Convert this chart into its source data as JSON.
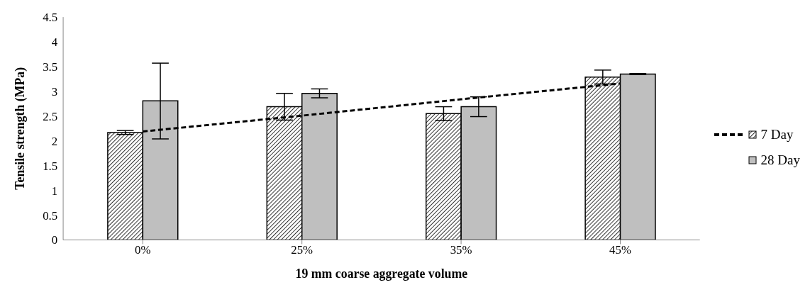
{
  "chart_data": {
    "type": "bar",
    "xlabel": "19 mm coarse aggregate volume",
    "ylabel": "Tensile strength (MPa)",
    "categories": [
      "0%",
      "25%",
      "35%",
      "45%"
    ],
    "series": [
      {
        "name": "7 Day",
        "color": "#000000",
        "values": [
          2.17,
          2.69,
          2.55,
          3.29
        ],
        "errors": [
          0.04,
          0.27,
          0.14,
          0.14
        ]
      },
      {
        "name": "28 Day",
        "color": "#bfbfbf",
        "values": [
          2.81,
          2.96,
          2.69,
          3.35
        ],
        "errors": [
          [
            2.04,
            3.57
          ],
          0.09,
          0.2,
          0.01
        ]
      },
      {
        "type": "line",
        "color": "#000000",
        "line_style": "dashed",
        "values": [
          2.19,
          2.51,
          2.84,
          3.16
        ]
      }
    ],
    "ylim": [
      0,
      4.5
    ],
    "yticks": [
      0,
      0.5,
      1,
      1.5,
      2,
      2.5,
      3,
      3.5,
      4,
      4.5
    ],
    "grid": false,
    "legend": "right"
  }
}
